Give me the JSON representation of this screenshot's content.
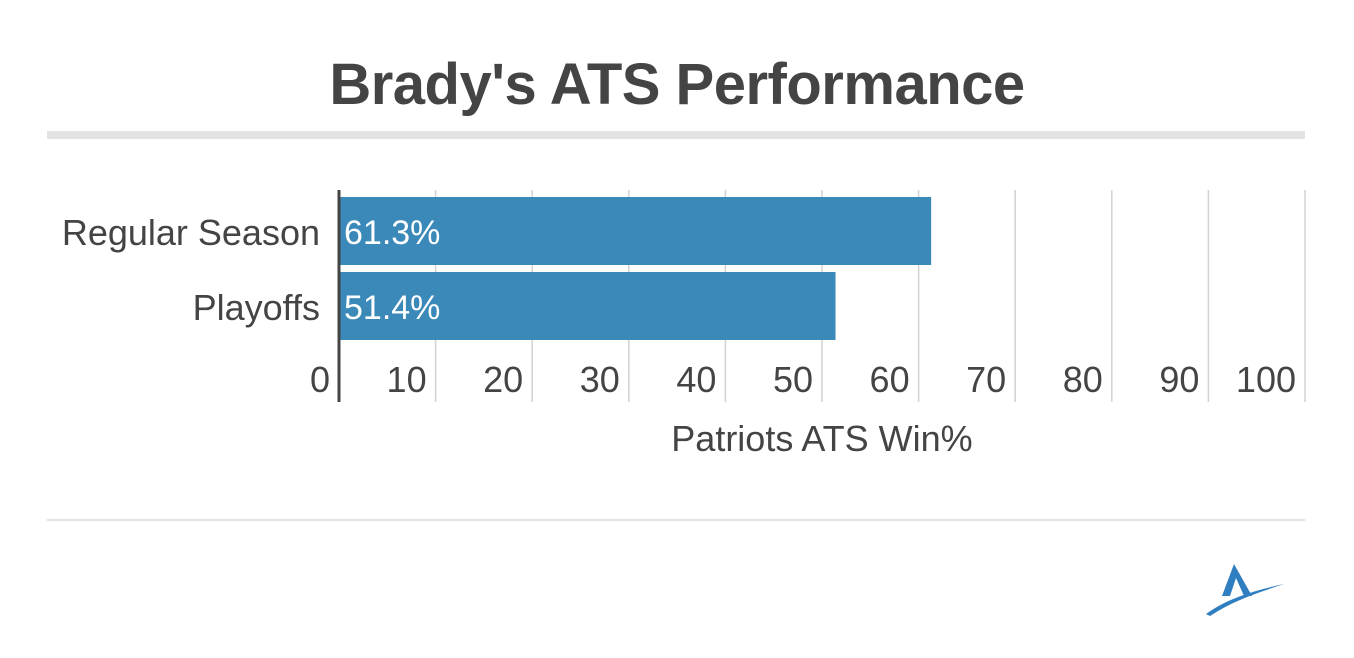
{
  "title": "Brady's ATS Performance",
  "colors": {
    "bar": "#3a89b9",
    "text": "#444444",
    "grid": "#d2d2d2",
    "axis": "#444444",
    "rule": "#e3e3e3",
    "logo": "#2f7fc0"
  },
  "logo": {
    "icon": "stylized-a-logo-icon"
  },
  "chart_data": {
    "type": "bar",
    "orientation": "horizontal",
    "categories": [
      "Regular Season",
      "Playoffs"
    ],
    "values": [
      61.3,
      51.4
    ],
    "data_labels": [
      "61.3%",
      "51.4%"
    ],
    "xlabel": "Patriots ATS Win%",
    "ylabel": "",
    "xlim": [
      0,
      100
    ],
    "ticks": [
      0,
      10,
      20,
      30,
      40,
      50,
      60,
      70,
      80,
      90,
      100
    ],
    "tick_labels": [
      "0",
      "10",
      "20",
      "30",
      "40",
      "50",
      "60",
      "70",
      "80",
      "90",
      "100"
    ],
    "grid": true,
    "legend": "none"
  }
}
